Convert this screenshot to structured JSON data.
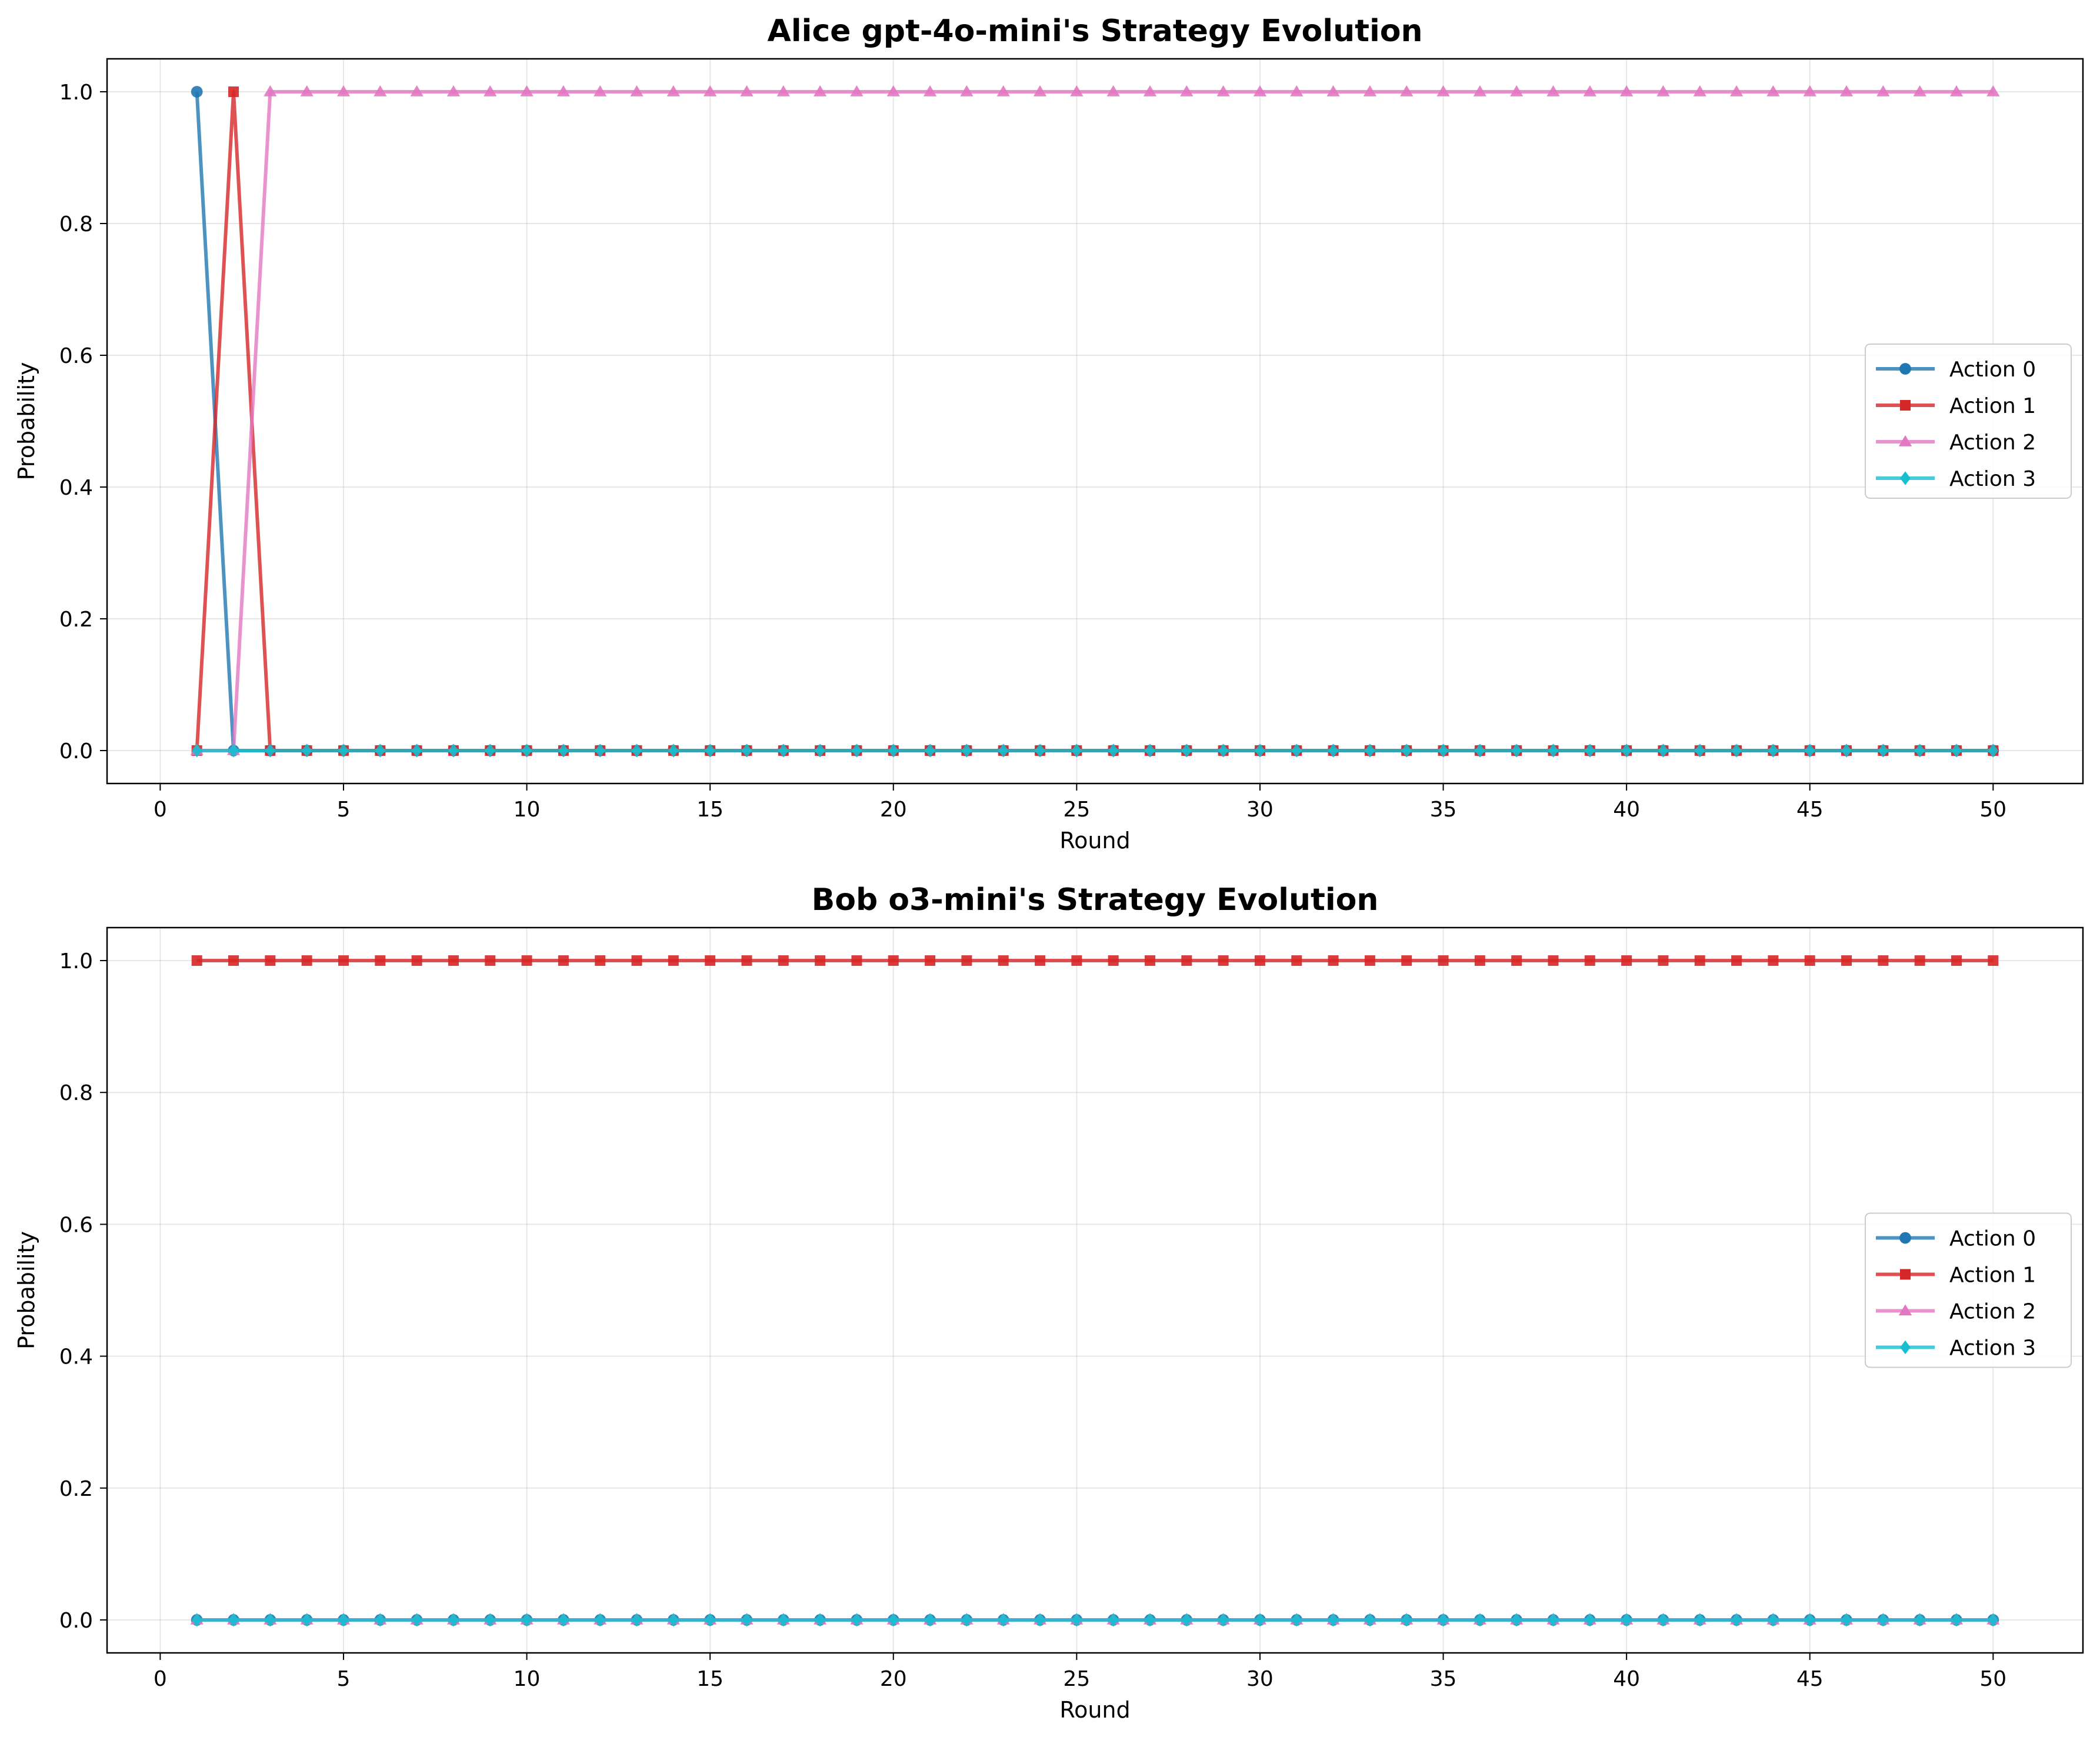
{
  "chart_data": [
    {
      "type": "line",
      "title": "Alice gpt-4o-mini's Strategy Evolution",
      "xlabel": "Round",
      "ylabel": "Probability",
      "xlim": [
        -1.45,
        52.45
      ],
      "ylim": [
        -0.05,
        1.05
      ],
      "xticks": [
        0,
        5,
        10,
        15,
        20,
        25,
        30,
        35,
        40,
        45,
        50
      ],
      "yticks": [
        0.0,
        0.2,
        0.4,
        0.6,
        0.8,
        1.0
      ],
      "xtick_labels": [
        "0",
        "5",
        "10",
        "15",
        "20",
        "25",
        "30",
        "35",
        "40",
        "45",
        "50"
      ],
      "ytick_labels": [
        "0.0",
        "0.2",
        "0.4",
        "0.6",
        "0.8",
        "1.0"
      ],
      "grid": true,
      "legend_position": "center right",
      "rounds": 50,
      "series": [
        {
          "name": "Action 0",
          "color": "#1f77b4",
          "marker": "circle",
          "segments": [
            {
              "from": 1,
              "to": 1,
              "value": 1
            },
            {
              "from": 2,
              "to": 50,
              "value": 0
            }
          ]
        },
        {
          "name": "Action 1",
          "color": "#d62728",
          "marker": "square",
          "segments": [
            {
              "from": 1,
              "to": 1,
              "value": 0
            },
            {
              "from": 2,
              "to": 2,
              "value": 1
            },
            {
              "from": 3,
              "to": 50,
              "value": 0
            }
          ]
        },
        {
          "name": "Action 2",
          "color": "#e377c2",
          "marker": "triangle",
          "segments": [
            {
              "from": 1,
              "to": 2,
              "value": 0
            },
            {
              "from": 3,
              "to": 50,
              "value": 1
            }
          ]
        },
        {
          "name": "Action 3",
          "color": "#17becf",
          "marker": "diamond",
          "segments": [
            {
              "from": 1,
              "to": 50,
              "value": 0
            }
          ]
        }
      ]
    },
    {
      "type": "line",
      "title": "Bob o3-mini's Strategy Evolution",
      "xlabel": "Round",
      "ylabel": "Probability",
      "xlim": [
        -1.45,
        52.45
      ],
      "ylim": [
        -0.05,
        1.05
      ],
      "xticks": [
        0,
        5,
        10,
        15,
        20,
        25,
        30,
        35,
        40,
        45,
        50
      ],
      "yticks": [
        0.0,
        0.2,
        0.4,
        0.6,
        0.8,
        1.0
      ],
      "xtick_labels": [
        "0",
        "5",
        "10",
        "15",
        "20",
        "25",
        "30",
        "35",
        "40",
        "45",
        "50"
      ],
      "ytick_labels": [
        "0.0",
        "0.2",
        "0.4",
        "0.6",
        "0.8",
        "1.0"
      ],
      "grid": true,
      "legend_position": "center right",
      "rounds": 50,
      "series": [
        {
          "name": "Action 0",
          "color": "#1f77b4",
          "marker": "circle",
          "segments": [
            {
              "from": 1,
              "to": 50,
              "value": 0
            }
          ]
        },
        {
          "name": "Action 1",
          "color": "#d62728",
          "marker": "square",
          "segments": [
            {
              "from": 1,
              "to": 50,
              "value": 1
            }
          ]
        },
        {
          "name": "Action 2",
          "color": "#e377c2",
          "marker": "triangle",
          "segments": [
            {
              "from": 1,
              "to": 50,
              "value": 0
            }
          ]
        },
        {
          "name": "Action 3",
          "color": "#17becf",
          "marker": "diamond",
          "segments": [
            {
              "from": 1,
              "to": 50,
              "value": 0
            }
          ]
        }
      ]
    }
  ]
}
